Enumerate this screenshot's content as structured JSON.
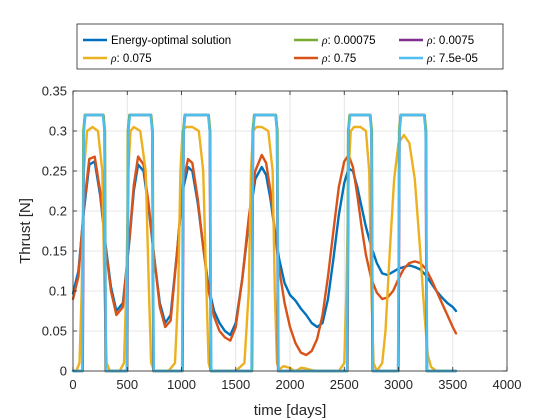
{
  "chart_data": {
    "type": "line",
    "xlabel": "time [days]",
    "ylabel": "Thrust [N]",
    "xlim": [
      0,
      4000
    ],
    "ylim": [
      0,
      0.35
    ],
    "xticks": [
      0,
      500,
      1000,
      1500,
      2000,
      2500,
      3000,
      3500,
      4000
    ],
    "yticks": [
      0,
      0.05,
      0.1,
      0.15,
      0.2,
      0.25,
      0.3,
      0.35
    ],
    "xtick_labels": [
      "0",
      "500",
      "1000",
      "1500",
      "2000",
      "2500",
      "3000",
      "3500",
      "4000"
    ],
    "ytick_labels": [
      "0",
      "0.05",
      "0.1",
      "0.15",
      "0.2",
      "0.25",
      "0.3",
      "0.35"
    ],
    "grid": true,
    "legend_position": "top",
    "series": [
      {
        "name": "Energy-optimal solution",
        "color": "#0072bd",
        "x": [
          0,
          50,
          100,
          150,
          200,
          250,
          300,
          350,
          400,
          460,
          520,
          560,
          600,
          650,
          700,
          750,
          800,
          850,
          900,
          960,
          1010,
          1060,
          1100,
          1150,
          1200,
          1250,
          1300,
          1350,
          1400,
          1450,
          1500,
          1560,
          1620,
          1680,
          1740,
          1780,
          1820,
          1860,
          1900,
          1950,
          2000,
          2050,
          2100,
          2150,
          2200,
          2250,
          2300,
          2350,
          2400,
          2450,
          2500,
          2540,
          2580,
          2620,
          2660,
          2700,
          2750,
          2800,
          2850,
          2900,
          2950,
          3000,
          3050,
          3100,
          3150,
          3200,
          3250,
          3300,
          3350,
          3400,
          3450,
          3500,
          3530
        ],
        "values": [
          0.097,
          0.125,
          0.2,
          0.258,
          0.262,
          0.22,
          0.158,
          0.105,
          0.075,
          0.085,
          0.163,
          0.225,
          0.258,
          0.25,
          0.2,
          0.14,
          0.085,
          0.06,
          0.07,
          0.15,
          0.225,
          0.255,
          0.25,
          0.21,
          0.155,
          0.105,
          0.075,
          0.06,
          0.05,
          0.045,
          0.06,
          0.115,
          0.185,
          0.24,
          0.255,
          0.245,
          0.215,
          0.175,
          0.14,
          0.11,
          0.095,
          0.088,
          0.078,
          0.07,
          0.06,
          0.055,
          0.06,
          0.09,
          0.14,
          0.195,
          0.235,
          0.253,
          0.25,
          0.23,
          0.205,
          0.18,
          0.155,
          0.135,
          0.122,
          0.12,
          0.124,
          0.128,
          0.13,
          0.132,
          0.13,
          0.127,
          0.12,
          0.11,
          0.1,
          0.092,
          0.085,
          0.08,
          0.075
        ]
      },
      {
        "name": "ρ: 0.75",
        "color": "#d95319",
        "x": [
          0,
          50,
          100,
          150,
          200,
          250,
          300,
          350,
          400,
          460,
          520,
          560,
          600,
          650,
          700,
          750,
          800,
          850,
          900,
          960,
          1010,
          1060,
          1100,
          1150,
          1200,
          1250,
          1300,
          1350,
          1400,
          1450,
          1500,
          1560,
          1620,
          1680,
          1740,
          1780,
          1820,
          1860,
          1900,
          1950,
          2000,
          2050,
          2100,
          2150,
          2200,
          2250,
          2300,
          2350,
          2400,
          2450,
          2500,
          2540,
          2580,
          2620,
          2660,
          2700,
          2750,
          2800,
          2850,
          2900,
          2950,
          3000,
          3050,
          3100,
          3150,
          3200,
          3250,
          3300,
          3350,
          3400,
          3450,
          3500,
          3530
        ],
        "values": [
          0.09,
          0.118,
          0.205,
          0.265,
          0.268,
          0.225,
          0.155,
          0.1,
          0.07,
          0.08,
          0.165,
          0.232,
          0.268,
          0.258,
          0.205,
          0.14,
          0.08,
          0.055,
          0.063,
          0.15,
          0.232,
          0.265,
          0.26,
          0.215,
          0.155,
          0.1,
          0.068,
          0.05,
          0.042,
          0.038,
          0.055,
          0.115,
          0.192,
          0.25,
          0.27,
          0.26,
          0.225,
          0.175,
          0.128,
          0.085,
          0.055,
          0.035,
          0.023,
          0.02,
          0.025,
          0.04,
          0.07,
          0.118,
          0.175,
          0.23,
          0.262,
          0.27,
          0.255,
          0.22,
          0.18,
          0.145,
          0.115,
          0.098,
          0.09,
          0.092,
          0.1,
          0.115,
          0.128,
          0.135,
          0.137,
          0.135,
          0.128,
          0.115,
          0.1,
          0.085,
          0.07,
          0.055,
          0.047
        ]
      },
      {
        "name": "ρ: 0.075",
        "color": "#edb120",
        "x": [
          0,
          30,
          60,
          80,
          100,
          130,
          180,
          230,
          270,
          290,
          310,
          340,
          380,
          430,
          470,
          490,
          510,
          530,
          560,
          620,
          670,
          700,
          720,
          750,
          800,
          880,
          940,
          970,
          990,
          1010,
          1040,
          1100,
          1160,
          1200,
          1230,
          1250,
          1270,
          1300,
          1380,
          1500,
          1580,
          1620,
          1640,
          1660,
          1690,
          1740,
          1800,
          1840,
          1860,
          1880,
          1900,
          1940,
          2000,
          2030,
          2050,
          2080,
          2100,
          2150,
          2200,
          2250,
          2300,
          2350,
          2400,
          2450,
          2500,
          2520,
          2540,
          2560,
          2590,
          2650,
          2700,
          2730,
          2750,
          2770,
          2800,
          2850,
          2880,
          2920,
          2960,
          3000,
          3050,
          3100,
          3150,
          3200,
          3240,
          3270,
          3300,
          3350,
          3400
        ],
        "values": [
          0,
          0,
          0.01,
          0.1,
          0.25,
          0.3,
          0.305,
          0.3,
          0.25,
          0.1,
          0.01,
          0,
          0,
          0,
          0.01,
          0.1,
          0.25,
          0.3,
          0.305,
          0.3,
          0.25,
          0.1,
          0.01,
          0,
          0,
          0,
          0.01,
          0.1,
          0.25,
          0.3,
          0.305,
          0.305,
          0.3,
          0.25,
          0.1,
          0.01,
          0,
          0,
          0,
          0,
          0.01,
          0.1,
          0.25,
          0.3,
          0.305,
          0.305,
          0.3,
          0.25,
          0.1,
          0.01,
          0.002,
          0.006,
          0.004,
          0.001,
          0,
          0.002,
          0.004,
          0.003,
          0.001,
          0,
          0,
          0,
          0,
          0,
          0.01,
          0.1,
          0.25,
          0.3,
          0.305,
          0.305,
          0.3,
          0.25,
          0.1,
          0.01,
          0,
          0.01,
          0.05,
          0.15,
          0.24,
          0.285,
          0.295,
          0.285,
          0.24,
          0.15,
          0.07,
          0.02,
          0.005,
          0,
          0
        ]
      },
      {
        "name": "ρ: 0.0075",
        "color": "#7e2f8e",
        "x": [
          0,
          90,
          100,
          110,
          280,
          290,
          300,
          500,
          510,
          520,
          720,
          730,
          740,
          1010,
          1020,
          1030,
          1250,
          1260,
          1270,
          1650,
          1660,
          1670,
          1870,
          1880,
          1890,
          2530,
          2540,
          2550,
          2740,
          2750,
          2760,
          3000,
          3010,
          3020,
          3240,
          3250,
          3260,
          3530
        ],
        "values": [
          0,
          0,
          0.3,
          0.32,
          0.32,
          0.3,
          0,
          0,
          0.3,
          0.32,
          0.32,
          0.3,
          0,
          0,
          0.3,
          0.32,
          0.32,
          0.3,
          0,
          0,
          0.3,
          0.32,
          0.32,
          0.3,
          0,
          0,
          0.3,
          0.32,
          0.32,
          0.3,
          0,
          0,
          0.3,
          0.32,
          0.32,
          0.3,
          0,
          0
        ]
      },
      {
        "name": "ρ: 0.00075",
        "color": "#77ac30",
        "x": [
          0,
          88,
          95,
          110,
          280,
          295,
          302,
          498,
          505,
          520,
          720,
          735,
          742,
          1008,
          1015,
          1030,
          1250,
          1265,
          1272,
          1648,
          1655,
          1670,
          1870,
          1885,
          1892,
          2528,
          2535,
          2550,
          2740,
          2755,
          2762,
          2998,
          3005,
          3020,
          3240,
          3255,
          3262,
          3530
        ],
        "values": [
          0,
          0,
          0.3,
          0.32,
          0.32,
          0.3,
          0,
          0,
          0.3,
          0.32,
          0.32,
          0.3,
          0,
          0,
          0.3,
          0.32,
          0.32,
          0.3,
          0,
          0,
          0.3,
          0.32,
          0.32,
          0.3,
          0,
          0,
          0.3,
          0.32,
          0.32,
          0.3,
          0,
          0,
          0.3,
          0.32,
          0.32,
          0.3,
          0,
          0
        ]
      },
      {
        "name": "ρ: 7.5e-05",
        "color": "#4dbeee",
        "x": [
          0,
          85,
          100,
          115,
          275,
          290,
          305,
          495,
          510,
          525,
          715,
          730,
          745,
          1005,
          1020,
          1035,
          1245,
          1260,
          1275,
          1645,
          1660,
          1675,
          1865,
          1880,
          1895,
          2525,
          2540,
          2555,
          2735,
          2750,
          2765,
          2995,
          3010,
          3025,
          3235,
          3250,
          3265,
          3530
        ],
        "values": [
          0,
          0,
          0.3,
          0.32,
          0.32,
          0.3,
          0,
          0,
          0.3,
          0.32,
          0.32,
          0.3,
          0,
          0,
          0.3,
          0.32,
          0.32,
          0.3,
          0,
          0,
          0.3,
          0.32,
          0.32,
          0.3,
          0,
          0,
          0.3,
          0.32,
          0.32,
          0.3,
          0,
          0,
          0.3,
          0.32,
          0.32,
          0.3,
          0,
          0
        ]
      }
    ],
    "legend_order": [
      0,
      2,
      4,
      1,
      3,
      5
    ]
  }
}
